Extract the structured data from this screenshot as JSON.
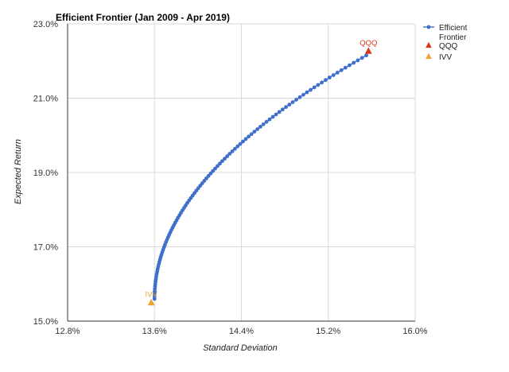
{
  "chart_data": {
    "type": "scatter",
    "title": "Efficient Frontier (Jan 2009 - Apr 2019)",
    "xlabel": "Standard Deviation",
    "ylabel": "Expected Return",
    "xlim": [
      12.8,
      16.0
    ],
    "ylim": [
      15.0,
      23.0
    ],
    "xticks": [
      12.8,
      13.6,
      14.4,
      15.2,
      16.0
    ],
    "yticks": [
      15.0,
      17.0,
      19.0,
      21.0,
      23.0
    ],
    "xtick_labels": [
      "12.8%",
      "13.6%",
      "14.4%",
      "15.2%",
      "16.0%"
    ],
    "ytick_labels": [
      "15.0%",
      "17.0%",
      "19.0%",
      "21.0%",
      "23.0%"
    ],
    "grid": true,
    "legend_position": "right",
    "series": [
      {
        "name": "Efficient Frontier",
        "legend_lines": [
          "Efficient",
          "Frontier"
        ],
        "marker": "circle",
        "color": "#3F6FCB",
        "frontier": {
          "min_std": 13.6,
          "min_return": 15.6,
          "max_std": 15.55,
          "max_return": 22.15,
          "points": 100
        }
      },
      {
        "name": "QQQ",
        "marker": "triangle",
        "color": "#D8391C",
        "points": [
          {
            "x": 15.57,
            "y": 22.27,
            "label": "QQQ"
          }
        ]
      },
      {
        "name": "IVV",
        "marker": "triangle",
        "color": "#F0A22E",
        "points": [
          {
            "x": 13.57,
            "y": 15.5,
            "label": "IVV"
          }
        ]
      }
    ]
  }
}
